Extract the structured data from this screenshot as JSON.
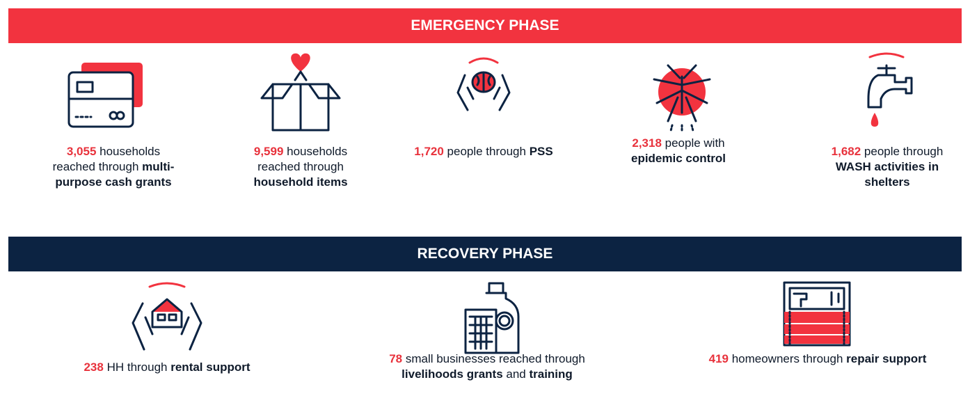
{
  "emergency": {
    "title": "EMERGENCY PHASE",
    "items": [
      {
        "segments": [
          {
            "text": "3,055",
            "style": "red"
          },
          {
            "text": " households reached through ",
            "style": "normal"
          },
          {
            "text": "multi-purpose cash grants",
            "style": "bold"
          }
        ]
      },
      {
        "segments": [
          {
            "text": "9,599",
            "style": "red"
          },
          {
            "text": " households reached through ",
            "style": "normal"
          },
          {
            "text": "household items",
            "style": "bold"
          }
        ]
      },
      {
        "segments": [
          {
            "text": "1,720",
            "style": "red"
          },
          {
            "text": " people through ",
            "style": "normal"
          },
          {
            "text": "PSS",
            "style": "bold"
          }
        ]
      },
      {
        "segments": [
          {
            "text": "2,318",
            "style": "red"
          },
          {
            "text": " people with ",
            "style": "normal"
          },
          {
            "text": "epidemic control",
            "style": "bold"
          }
        ]
      },
      {
        "segments": [
          {
            "text": "1,682",
            "style": "red"
          },
          {
            "text": " people through ",
            "style": "normal"
          },
          {
            "text": "WASH activities in shelters",
            "style": "bold"
          }
        ]
      }
    ]
  },
  "recovery": {
    "title": "RECOVERY PHASE",
    "items": [
      {
        "segments": [
          {
            "text": "238",
            "style": "red"
          },
          {
            "text": " HH through ",
            "style": "normal"
          },
          {
            "text": "rental support",
            "style": "bold"
          }
        ]
      },
      {
        "segments": [
          {
            "text": "78",
            "style": "red"
          },
          {
            "text": " small businesses reached through ",
            "style": "normal"
          },
          {
            "text": "livelihoods grants",
            "style": "bold"
          },
          {
            "text": " and ",
            "style": "normal"
          },
          {
            "text": "training",
            "style": "bold"
          }
        ]
      },
      {
        "segments": [
          {
            "text": "419",
            "style": "red"
          },
          {
            "text": " homeowners through ",
            "style": "normal"
          },
          {
            "text": "repair support",
            "style": "bold"
          }
        ]
      }
    ]
  }
}
